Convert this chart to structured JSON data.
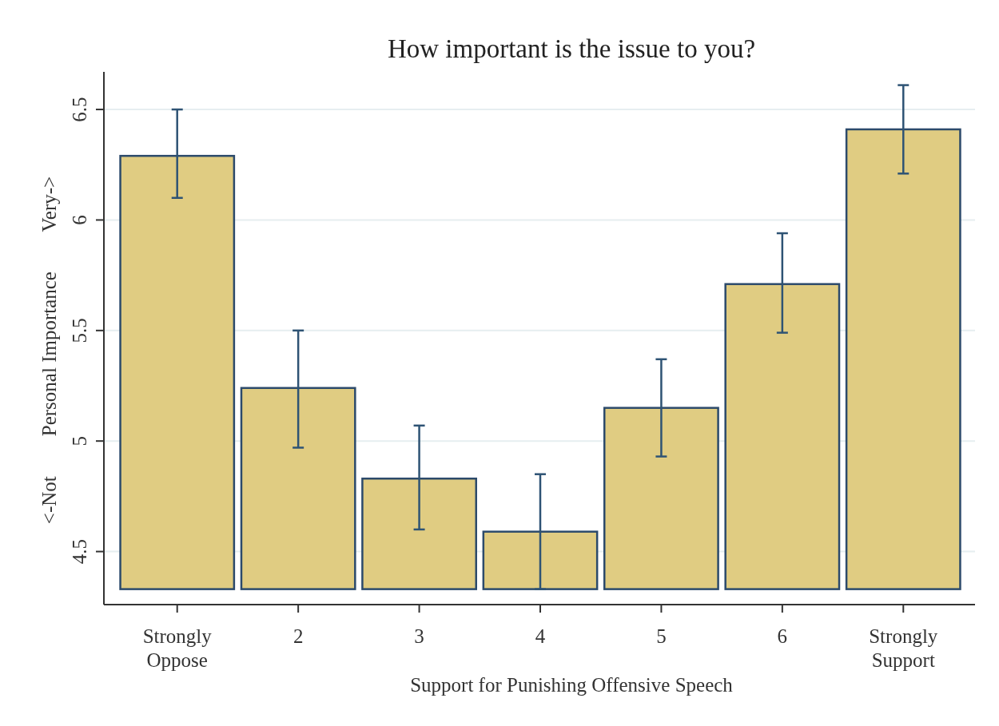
{
  "chart_data": {
    "type": "bar",
    "title": "How important is the issue to you?",
    "xlabel": "Support for Punishing Offensive Speech",
    "ylabel": "<-Not        Personal Importance        Very->",
    "categories": [
      "Strongly Oppose",
      "2",
      "3",
      "4",
      "5",
      "6",
      "Strongly Support"
    ],
    "base": [
      4.33,
      4.33,
      4.33,
      4.33,
      4.33,
      4.33,
      4.33
    ],
    "values": [
      1.96,
      0.91,
      0.5,
      0.26,
      0.82,
      1.38,
      2.08
    ],
    "errors": [
      [
        6.1,
        6.5
      ],
      [
        4.97,
        5.5
      ],
      [
        4.6,
        5.07
      ],
      [
        4.33,
        4.85
      ],
      [
        4.93,
        5.37
      ],
      [
        5.49,
        5.94
      ],
      [
        6.21,
        6.61
      ]
    ],
    "color": "#e0cc82",
    "ylim": [
      4.26,
      6.67
    ],
    "yticks": [
      4.5,
      5,
      5.5,
      6,
      6.5
    ],
    "grid": "y"
  }
}
